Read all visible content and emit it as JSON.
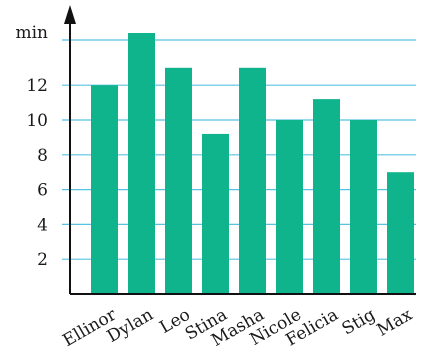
{
  "chart_data": {
    "type": "bar",
    "title": "",
    "xlabel": "",
    "ylabel": "min",
    "categories": [
      "Ellinor",
      "Dylan",
      "Leo",
      "Stina",
      "Masha",
      "Nicole",
      "Felicia",
      "Stig",
      "Max"
    ],
    "values": [
      12,
      15,
      13,
      9.2,
      13,
      10,
      11.2,
      10,
      7
    ],
    "yticks": [
      2,
      4,
      6,
      8,
      10,
      12
    ],
    "ylim": [
      0,
      15
    ],
    "grid": true,
    "bar_color": "#10b48c",
    "grid_color": "#56c4e0",
    "axis_color": "#111111"
  }
}
